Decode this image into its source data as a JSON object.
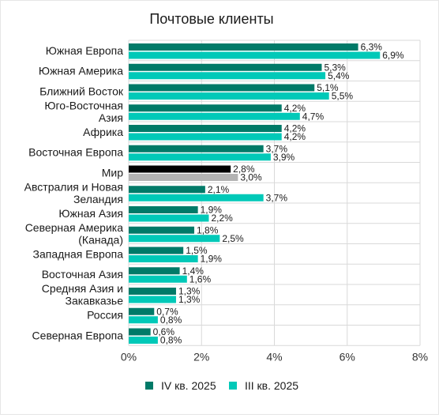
{
  "chart_data": {
    "type": "bar",
    "title": "Почтовые клиенты",
    "categories": [
      [
        "Южная Европа"
      ],
      [
        "Южная Америка"
      ],
      [
        "Ближний Восток"
      ],
      [
        "Юго-Восточная",
        "Азия"
      ],
      [
        "Африка"
      ],
      [
        "Восточная Европа"
      ],
      [
        "Мир"
      ],
      [
        "Австралия и Новая",
        "Зеландия"
      ],
      [
        "Южная Азия"
      ],
      [
        "Северная Америка",
        "(Канада)"
      ],
      [
        "Западная Европа"
      ],
      [
        "Восточная Азия"
      ],
      [
        "Средняя Азия и",
        "Закавказье"
      ],
      [
        "Россия"
      ],
      [
        "Северная Европа"
      ]
    ],
    "series": [
      {
        "name": "IV кв. 2025",
        "color": "#007a68",
        "values": [
          6.3,
          5.3,
          5.1,
          4.2,
          4.2,
          3.7,
          2.8,
          2.1,
          1.9,
          1.8,
          1.5,
          1.4,
          1.3,
          0.7,
          0.6
        ],
        "labels": [
          "6,3%",
          "5,3%",
          "5,1%",
          "4,2%",
          "4,2%",
          "3,7%",
          "2,8%",
          "2,1%",
          "1,9%",
          "1,8%",
          "1,5%",
          "1,4%",
          "1,3%",
          "0,7%",
          "0,6%"
        ]
      },
      {
        "name": "III кв. 2025",
        "color": "#00c9b8",
        "values": [
          6.9,
          5.4,
          5.5,
          4.7,
          4.2,
          3.9,
          3.0,
          3.7,
          2.2,
          2.5,
          1.9,
          1.6,
          1.3,
          0.8,
          0.8
        ],
        "labels": [
          "6,9%",
          "5,4%",
          "5,5%",
          "4,7%",
          "4,2%",
          "3,9%",
          "3,0%",
          "3,7%",
          "2,2%",
          "2,5%",
          "1,9%",
          "1,6%",
          "1,3%",
          "0,8%",
          "0,8%"
        ]
      }
    ],
    "highlight": {
      "category_index": 6,
      "colors": [
        "#000000",
        "#b3b3b3"
      ]
    },
    "xlim": [
      0,
      8
    ],
    "xticks": [
      0,
      2,
      4,
      6,
      8
    ],
    "xtick_labels": [
      "0%",
      "2%",
      "4%",
      "6%",
      "8%"
    ],
    "grid": true,
    "legend_position": "bottom"
  }
}
